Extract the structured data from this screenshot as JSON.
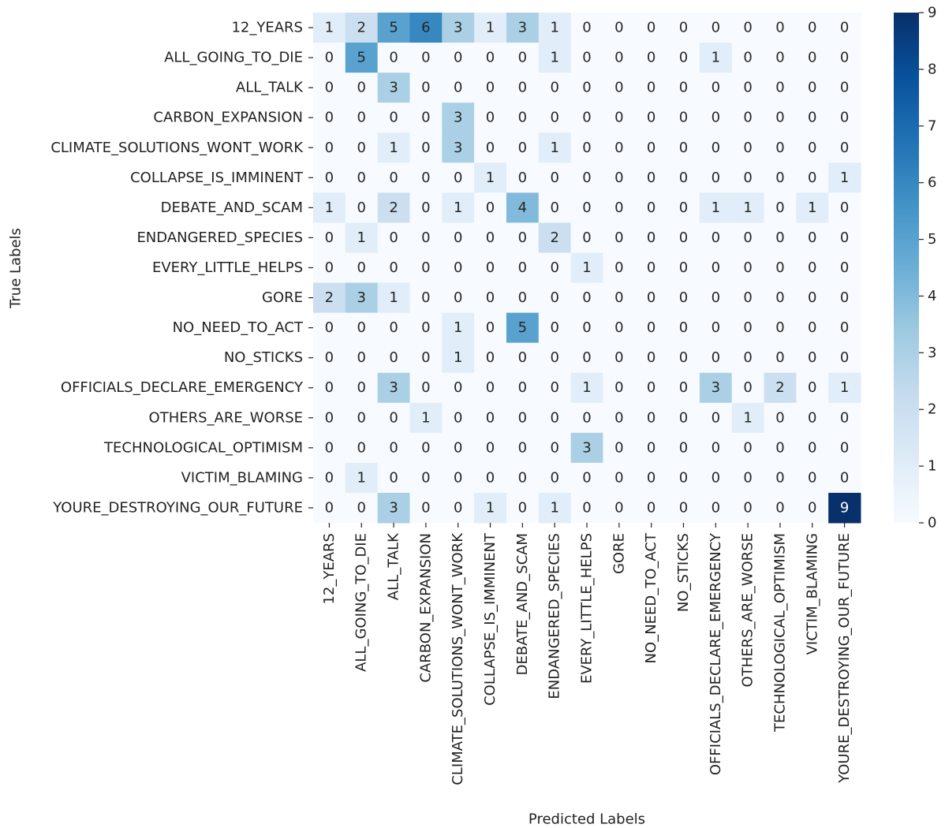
{
  "chart_data": {
    "type": "heatmap",
    "x_label": "Predicted Labels",
    "y_label": "True Labels",
    "x_categories": [
      "12_YEARS",
      "ALL_GOING_TO_DIE",
      "ALL_TALK",
      "CARBON_EXPANSION",
      "CLIMATE_SOLUTIONS_WONT_WORK",
      "COLLAPSE_IS_IMMINENT",
      "DEBATE_AND_SCAM",
      "ENDANGERED_SPECIES",
      "EVERY_LITTLE_HELPS",
      "GORE",
      "NO_NEED_TO_ACT",
      "NO_STICKS",
      "OFFICIALS_DECLARE_EMERGENCY",
      "OTHERS_ARE_WORSE",
      "TECHNOLOGICAL_OPTIMISM",
      "VICTIM_BLAMING",
      "YOURE_DESTROYING_OUR_FUTURE"
    ],
    "y_categories": [
      "12_YEARS",
      "ALL_GOING_TO_DIE",
      "ALL_TALK",
      "CARBON_EXPANSION",
      "CLIMATE_SOLUTIONS_WONT_WORK",
      "COLLAPSE_IS_IMMINENT",
      "DEBATE_AND_SCAM",
      "ENDANGERED_SPECIES",
      "EVERY_LITTLE_HELPS",
      "GORE",
      "NO_NEED_TO_ACT",
      "NO_STICKS",
      "OFFICIALS_DECLARE_EMERGENCY",
      "OTHERS_ARE_WORSE",
      "TECHNOLOGICAL_OPTIMISM",
      "VICTIM_BLAMING",
      "YOURE_DESTROYING_OUR_FUTURE"
    ],
    "values": [
      [
        1,
        2,
        5,
        6,
        3,
        1,
        3,
        1,
        0,
        0,
        0,
        0,
        0,
        0,
        0,
        0,
        0
      ],
      [
        0,
        5,
        0,
        0,
        0,
        0,
        0,
        1,
        0,
        0,
        0,
        0,
        1,
        0,
        0,
        0,
        0
      ],
      [
        0,
        0,
        3,
        0,
        0,
        0,
        0,
        0,
        0,
        0,
        0,
        0,
        0,
        0,
        0,
        0,
        0
      ],
      [
        0,
        0,
        0,
        0,
        3,
        0,
        0,
        0,
        0,
        0,
        0,
        0,
        0,
        0,
        0,
        0,
        0
      ],
      [
        0,
        0,
        1,
        0,
        3,
        0,
        0,
        1,
        0,
        0,
        0,
        0,
        0,
        0,
        0,
        0,
        0
      ],
      [
        0,
        0,
        0,
        0,
        0,
        1,
        0,
        0,
        0,
        0,
        0,
        0,
        0,
        0,
        0,
        0,
        1
      ],
      [
        1,
        0,
        2,
        0,
        1,
        0,
        4,
        0,
        0,
        0,
        0,
        0,
        1,
        1,
        0,
        1,
        0
      ],
      [
        0,
        1,
        0,
        0,
        0,
        0,
        0,
        2,
        0,
        0,
        0,
        0,
        0,
        0,
        0,
        0,
        0
      ],
      [
        0,
        0,
        0,
        0,
        0,
        0,
        0,
        0,
        1,
        0,
        0,
        0,
        0,
        0,
        0,
        0,
        0
      ],
      [
        2,
        3,
        1,
        0,
        0,
        0,
        0,
        0,
        0,
        0,
        0,
        0,
        0,
        0,
        0,
        0,
        0
      ],
      [
        0,
        0,
        0,
        0,
        1,
        0,
        5,
        0,
        0,
        0,
        0,
        0,
        0,
        0,
        0,
        0,
        0
      ],
      [
        0,
        0,
        0,
        0,
        1,
        0,
        0,
        0,
        0,
        0,
        0,
        0,
        0,
        0,
        0,
        0,
        0
      ],
      [
        0,
        0,
        3,
        0,
        0,
        0,
        0,
        0,
        1,
        0,
        0,
        0,
        3,
        0,
        2,
        0,
        1
      ],
      [
        0,
        0,
        0,
        1,
        0,
        0,
        0,
        0,
        0,
        0,
        0,
        0,
        0,
        1,
        0,
        0,
        0
      ],
      [
        0,
        0,
        0,
        0,
        0,
        0,
        0,
        0,
        3,
        0,
        0,
        0,
        0,
        0,
        0,
        0,
        0
      ],
      [
        0,
        1,
        0,
        0,
        0,
        0,
        0,
        0,
        0,
        0,
        0,
        0,
        0,
        0,
        0,
        0,
        0
      ],
      [
        0,
        0,
        3,
        0,
        0,
        1,
        0,
        1,
        0,
        0,
        0,
        0,
        0,
        0,
        0,
        0,
        9
      ]
    ],
    "colors": [
      "#f7fbff",
      "#deebf7",
      "#c6dbef",
      "#9ecae1",
      "#6baed6",
      "#4292c6",
      "#2171b5",
      "#08519c",
      "#08306b"
    ],
    "clim": [
      0,
      9
    ],
    "cticks": [
      0,
      1,
      2,
      3,
      4,
      5,
      6,
      7,
      8,
      9
    ]
  }
}
